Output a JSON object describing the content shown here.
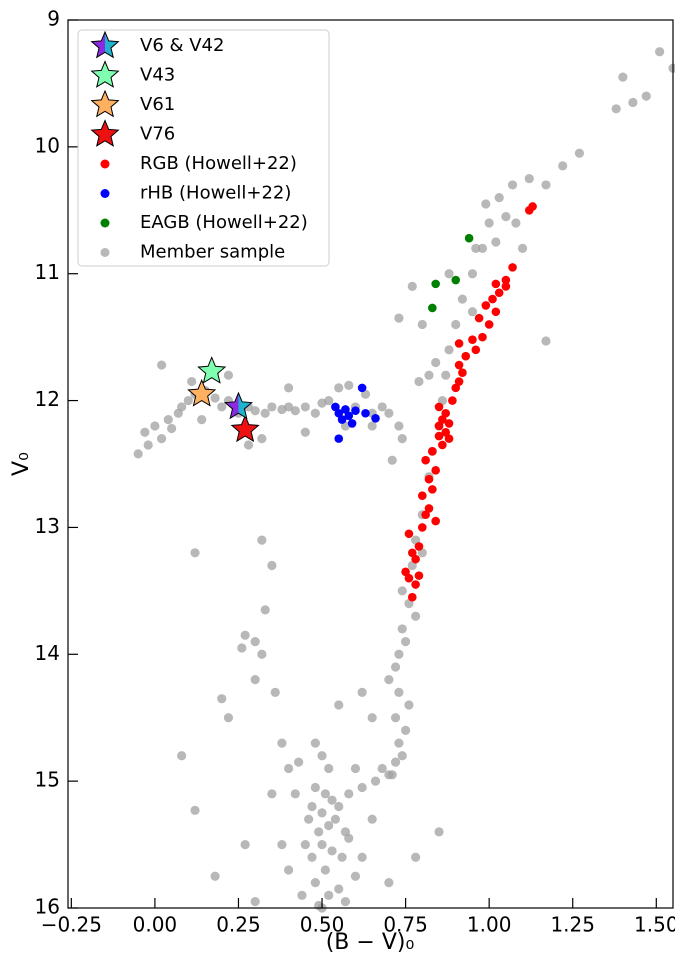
{
  "chart_data": {
    "type": "scatter",
    "x_label": "(B − V)₀",
    "y_label": "V₀",
    "xlim": [
      -0.26,
      1.55
    ],
    "ylim": [
      9,
      16
    ],
    "y_inverted": true,
    "xticks": [
      {
        "value": -0.25,
        "label": "−0.25"
      },
      {
        "value": 0,
        "label": "0.00"
      },
      0.25,
      {
        "value": 0.5,
        "label": "0.50"
      },
      0.75,
      {
        "value": 1,
        "label": "1.00"
      },
      1.25,
      {
        "value": 1.5,
        "label": "1.50"
      }
    ],
    "yticks": [
      9,
      10,
      11,
      12,
      13,
      14,
      15,
      16
    ],
    "legend": "upper left",
    "series": [
      {
        "name": "V6 & V42",
        "marker": "star",
        "color": [
          "#8a2be2",
          "#1fb3d0"
        ],
        "x": [
          0.25
        ],
        "values": [
          12.05
        ]
      },
      {
        "name": "V43",
        "marker": "star",
        "color": "#7fffb0",
        "x": [
          0.17
        ],
        "values": [
          11.77
        ]
      },
      {
        "name": "V61",
        "marker": "star",
        "color": "#ffb060",
        "x": [
          0.14
        ],
        "values": [
          11.95
        ]
      },
      {
        "name": "V76",
        "marker": "star",
        "color": "#ee1111",
        "x": [
          0.27
        ],
        "values": [
          12.23
        ]
      },
      {
        "name": "RGB (Howell+22)",
        "marker": "circle",
        "color": "#ff0000",
        "x": [
          0.77,
          0.76,
          0.78,
          0.75,
          0.77,
          0.79,
          0.76,
          0.8,
          0.81,
          0.82,
          0.8,
          0.83,
          0.82,
          0.84,
          0.81,
          0.83,
          0.86,
          0.85,
          0.87,
          0.85,
          0.86,
          0.88,
          0.87,
          0.85,
          0.89,
          0.9,
          0.91,
          0.92,
          0.91,
          0.93,
          0.91,
          0.96,
          0.98,
          1.0,
          0.97,
          1.02,
          0.99,
          1.01,
          1.03,
          1.05,
          1.07,
          1.05,
          1.02,
          1.13,
          1.12,
          0.95,
          0.88,
          0.84,
          0.79,
          0.78
        ],
        "values": [
          13.55,
          13.4,
          13.45,
          13.35,
          13.2,
          13.15,
          13.05,
          13.0,
          12.9,
          12.85,
          12.75,
          12.7,
          12.62,
          12.55,
          12.47,
          12.4,
          12.35,
          12.28,
          12.25,
          12.2,
          12.15,
          12.18,
          12.1,
          12.05,
          12.0,
          11.9,
          11.85,
          11.78,
          11.72,
          11.65,
          11.55,
          11.6,
          11.5,
          11.4,
          11.35,
          11.3,
          11.25,
          11.2,
          11.15,
          11.05,
          10.95,
          11.1,
          11.08,
          10.47,
          10.5,
          11.52,
          12.3,
          12.95,
          13.38,
          13.25
        ]
      },
      {
        "name": "rHB (Howell+22)",
        "marker": "circle",
        "color": "#0000ff",
        "x": [
          0.55,
          0.57,
          0.58,
          0.56,
          0.6,
          0.59,
          0.62,
          0.63,
          0.66,
          0.55,
          0.54
        ],
        "values": [
          12.1,
          12.07,
          12.12,
          12.15,
          12.08,
          12.18,
          11.9,
          12.1,
          12.14,
          12.3,
          12.05
        ]
      },
      {
        "name": "EAGB (Howell+22)",
        "marker": "circle",
        "color": "#008000",
        "x": [
          0.94,
          0.9,
          0.84,
          0.83
        ],
        "values": [
          10.72,
          11.05,
          11.08,
          11.27
        ]
      },
      {
        "name": "Member sample",
        "marker": "circle",
        "color": "#a0a0a0",
        "x": [
          0.5,
          0.52,
          0.48,
          0.55,
          0.51,
          0.47,
          0.53,
          0.5,
          0.56,
          0.49,
          0.52,
          0.54,
          0.5,
          0.47,
          0.53,
          0.51,
          0.58,
          0.62,
          0.66,
          0.7,
          0.48,
          0.55,
          0.45,
          0.58,
          0.44,
          0.6,
          0.57,
          0.49,
          0.46,
          0.52,
          0.5,
          0.48,
          0.43,
          0.6,
          0.57,
          0.62,
          0.4,
          0.38,
          0.65,
          0.42,
          0.68,
          0.72,
          0.73,
          0.72,
          0.73,
          0.72,
          0.73,
          0.74,
          0.76,
          0.74,
          0.77,
          0.78,
          0.75,
          0.7,
          0.76,
          0.74,
          0.71,
          0.75,
          0.8,
          0.78,
          0.8,
          0.82,
          0.83,
          0.85,
          0.86,
          0.87,
          0.88,
          0.9,
          0.92,
          0.95,
          0.98,
          1.0,
          1.03,
          1.07,
          1.12,
          1.17,
          1.22,
          1.27,
          1.38,
          1.4,
          1.43,
          1.47,
          1.51,
          1.55,
          0.99,
          1.08,
          0.84,
          0.82,
          0.79,
          0.8,
          0.77,
          0.73,
          0.88,
          0.95,
          1.02,
          0.96,
          1.05,
          1.1,
          1.17,
          -0.05,
          -0.02,
          -0.03,
          0.0,
          0.02,
          0.04,
          0.05,
          0.07,
          0.08,
          0.1,
          0.12,
          0.15,
          0.18,
          0.2,
          0.22,
          0.25,
          0.28,
          0.3,
          0.33,
          0.35,
          0.38,
          0.4,
          0.42,
          0.45,
          0.48,
          0.5,
          0.52,
          0.6,
          0.65,
          0.68,
          0.7,
          0.73,
          0.63,
          0.55,
          0.58,
          0.02,
          0.11,
          0.22,
          0.14,
          0.32,
          0.28,
          0.45,
          0.57,
          0.4,
          0.65,
          0.71,
          0.74,
          0.12,
          0.32,
          0.35,
          0.33,
          0.27,
          0.3,
          0.26,
          0.32,
          0.36,
          0.3,
          0.2,
          0.22,
          0.38,
          0.08,
          0.12,
          0.35,
          0.4,
          0.18,
          0.27,
          0.3,
          0.85,
          0.78,
          0.7,
          0.65,
          0.62,
          0.55
        ],
        "values": [
          16.0,
          15.9,
          15.8,
          15.85,
          15.7,
          15.6,
          15.55,
          15.5,
          15.6,
          15.4,
          15.35,
          15.3,
          15.25,
          15.2,
          15.15,
          15.1,
          15.1,
          15.05,
          15.0,
          14.95,
          15.05,
          15.2,
          15.5,
          15.45,
          15.9,
          15.75,
          15.95,
          15.98,
          15.3,
          14.9,
          14.8,
          14.7,
          14.85,
          14.9,
          15.4,
          15.6,
          15.7,
          15.5,
          15.3,
          15.1,
          14.9,
          14.85,
          14.7,
          14.5,
          14.3,
          14.1,
          14.0,
          13.8,
          13.6,
          13.5,
          13.3,
          13.1,
          14.6,
          14.2,
          14.4,
          14.8,
          14.95,
          13.9,
          13.2,
          13.7,
          12.9,
          12.6,
          12.4,
          12.2,
          12.0,
          11.8,
          11.6,
          11.4,
          11.2,
          11.0,
          10.8,
          10.6,
          10.4,
          10.3,
          10.25,
          10.3,
          10.15,
          10.05,
          9.7,
          9.45,
          9.65,
          9.6,
          9.25,
          9.38,
          10.45,
          10.6,
          11.7,
          11.8,
          11.85,
          11.4,
          11.1,
          11.35,
          11.0,
          11.3,
          10.75,
          10.8,
          10.55,
          10.8,
          11.53,
          12.42,
          12.35,
          12.25,
          12.2,
          12.3,
          12.15,
          12.22,
          12.1,
          12.05,
          12.0,
          11.95,
          11.92,
          11.98,
          12.05,
          12.0,
          12.1,
          12.05,
          12.08,
          12.1,
          12.05,
          12.07,
          12.05,
          12.08,
          12.05,
          12.1,
          12.02,
          12.0,
          12.05,
          12.1,
          12.05,
          12.1,
          12.2,
          11.95,
          11.9,
          11.88,
          11.72,
          11.85,
          11.8,
          12.15,
          12.3,
          12.35,
          12.25,
          12.2,
          11.9,
          12.2,
          12.47,
          12.3,
          13.2,
          13.1,
          13.3,
          13.65,
          13.85,
          13.9,
          13.95,
          14.0,
          14.3,
          14.2,
          14.35,
          14.5,
          14.7,
          14.8,
          15.23,
          15.1,
          14.9,
          15.75,
          15.5,
          15.95,
          15.4,
          15.6,
          15.8,
          14.5,
          14.3,
          14.4
        ]
      }
    ]
  }
}
